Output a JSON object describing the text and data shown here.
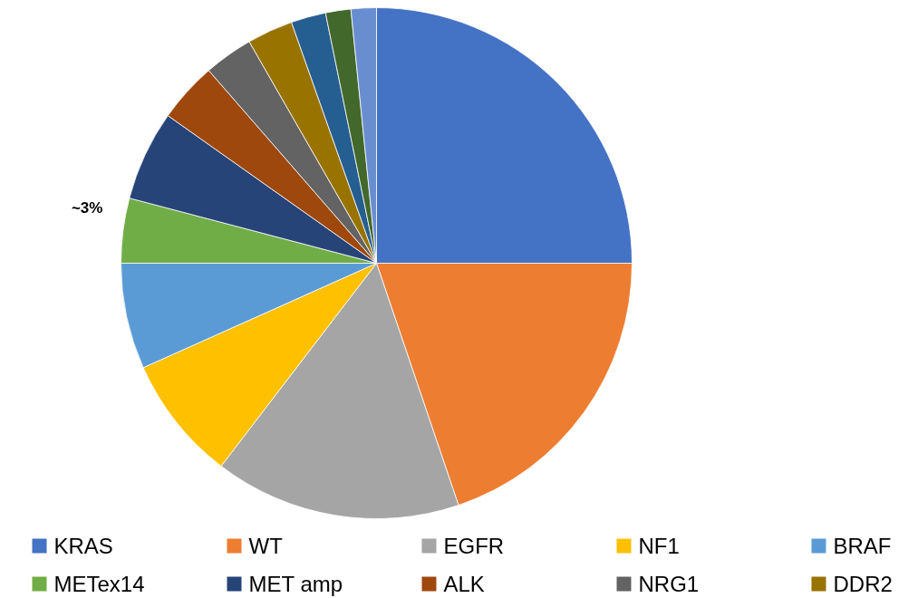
{
  "chart_data": {
    "type": "pie",
    "categories": [
      "KRAS",
      "WT",
      "EGFR",
      "NF1",
      "BRAF",
      "METex14",
      "MET amp",
      "ALK",
      "NRG1",
      "DDR2",
      null,
      null,
      null
    ],
    "values": [
      25,
      19.8,
      15.6,
      7.9,
      6.7,
      4.1,
      5.7,
      3.8,
      3.1,
      2.9,
      2.2,
      1.6,
      1.6
    ],
    "colors": [
      "#4472c4",
      "#ed7d31",
      "#a5a5a5",
      "#ffc000",
      "#5b9bd5",
      "#70ad47",
      "#264478",
      "#9e480e",
      "#636363",
      "#997300",
      "#255e91",
      "#43682b",
      "#698ed0"
    ],
    "annotations": [
      {
        "text": "~3%",
        "x": "METex14"
      }
    ],
    "legend": "bottom"
  }
}
